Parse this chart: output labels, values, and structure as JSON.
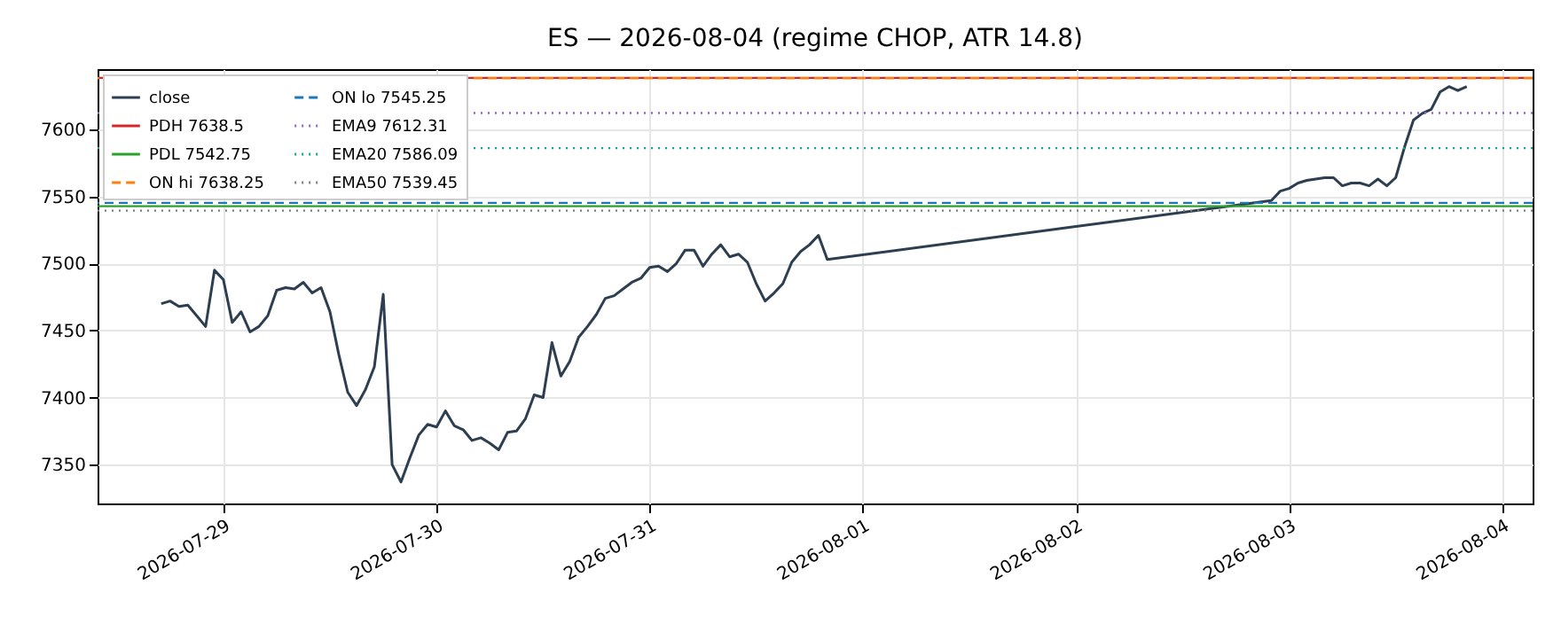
{
  "chart_data": {
    "type": "line",
    "title": "ES — 2026-08-04  (regime CHOP, ATR 14.8)",
    "series": [
      {
        "name": "close",
        "color": "#2c3e50",
        "line_style": "solid",
        "x": [
          "2026-07-28T17:00",
          "2026-07-28T18:00",
          "2026-07-28T19:00",
          "2026-07-28T20:00",
          "2026-07-28T21:00",
          "2026-07-28T22:00",
          "2026-07-28T23:00",
          "2026-07-29T00:00",
          "2026-07-29T01:00",
          "2026-07-29T02:00",
          "2026-07-29T03:00",
          "2026-07-29T04:00",
          "2026-07-29T05:00",
          "2026-07-29T06:00",
          "2026-07-29T07:00",
          "2026-07-29T08:00",
          "2026-07-29T09:00",
          "2026-07-29T10:00",
          "2026-07-29T11:00",
          "2026-07-29T12:00",
          "2026-07-29T13:00",
          "2026-07-29T14:00",
          "2026-07-29T15:00",
          "2026-07-29T16:00",
          "2026-07-29T17:00",
          "2026-07-29T18:00",
          "2026-07-29T19:00",
          "2026-07-29T20:00",
          "2026-07-29T21:00",
          "2026-07-29T22:00",
          "2026-07-29T23:00",
          "2026-07-30T00:00",
          "2026-07-30T01:00",
          "2026-07-30T02:00",
          "2026-07-30T03:00",
          "2026-07-30T04:00",
          "2026-07-30T05:00",
          "2026-07-30T06:00",
          "2026-07-30T07:00",
          "2026-07-30T08:00",
          "2026-07-30T09:00",
          "2026-07-30T10:00",
          "2026-07-30T11:00",
          "2026-07-30T12:00",
          "2026-07-30T13:00",
          "2026-07-30T14:00",
          "2026-07-30T15:00",
          "2026-07-30T16:00",
          "2026-07-30T17:00",
          "2026-07-30T18:00",
          "2026-07-30T19:00",
          "2026-07-30T20:00",
          "2026-07-30T21:00",
          "2026-07-30T22:00",
          "2026-07-30T23:00",
          "2026-07-31T00:00",
          "2026-07-31T01:00",
          "2026-07-31T02:00",
          "2026-07-31T03:00",
          "2026-07-31T04:00",
          "2026-07-31T05:00",
          "2026-07-31T06:00",
          "2026-07-31T07:00",
          "2026-07-31T08:00",
          "2026-07-31T09:00",
          "2026-07-31T10:00",
          "2026-07-31T11:00",
          "2026-07-31T12:00",
          "2026-07-31T13:00",
          "2026-07-31T14:00",
          "2026-07-31T15:00",
          "2026-07-31T16:00",
          "2026-07-31T17:00",
          "2026-07-31T18:00",
          "2026-07-31T19:00",
          "2026-07-31T20:00",
          "2026-08-02T22:00",
          "2026-08-02T23:00",
          "2026-08-03T00:00",
          "2026-08-03T01:00",
          "2026-08-03T02:00",
          "2026-08-03T03:00",
          "2026-08-03T04:00",
          "2026-08-03T05:00",
          "2026-08-03T06:00",
          "2026-08-03T07:00",
          "2026-08-03T08:00",
          "2026-08-03T09:00",
          "2026-08-03T10:00",
          "2026-08-03T11:00",
          "2026-08-03T12:00",
          "2026-08-03T13:00",
          "2026-08-03T14:00",
          "2026-08-03T15:00",
          "2026-08-03T16:00",
          "2026-08-03T17:00",
          "2026-08-03T18:00",
          "2026-08-03T19:00",
          "2026-08-03T20:00"
        ],
        "values": [
          7470,
          7472,
          7468,
          7469,
          7461,
          7453,
          7495,
          7488,
          7456,
          7464,
          7449,
          7453,
          7461,
          7480,
          7482,
          7481,
          7486,
          7478,
          7482,
          7464,
          7432,
          7404,
          7394,
          7406,
          7423,
          7477,
          7350,
          7337,
          7355,
          7372,
          7380,
          7378,
          7390,
          7379,
          7376,
          7368,
          7370,
          7366,
          7361,
          7374,
          7375,
          7384,
          7402,
          7400,
          7441,
          7416,
          7427,
          7445,
          7453,
          7462,
          7474,
          7476,
          7481,
          7486,
          7489,
          7497,
          7498,
          7494,
          7500,
          7510,
          7510,
          7498,
          7507,
          7514,
          7505,
          7507,
          7501,
          7485,
          7472,
          7478,
          7485,
          7501,
          7509,
          7514,
          7521,
          7503,
          7547,
          7554,
          7556,
          7560,
          7562,
          7563,
          7564,
          7564,
          7558,
          7560,
          7560,
          7558,
          7563,
          7558,
          7564,
          7587,
          7607,
          7612,
          7615,
          7628,
          7632,
          7629,
          7632
        ]
      }
    ],
    "ref_lines": [
      {
        "axis": "y",
        "value": 7638.5,
        "label": "PDH 7638.5",
        "color": "#d62728",
        "line_style": "solid"
      },
      {
        "axis": "y",
        "value": 7542.75,
        "label": "PDL 7542.75",
        "color": "#2ca02c",
        "line_style": "solid"
      },
      {
        "axis": "y",
        "value": 7638.25,
        "label": "ON hi 7638.25",
        "color": "#ff7f0e",
        "line_style": "dashed"
      },
      {
        "axis": "y",
        "value": 7545.25,
        "label": "ON lo 7545.25",
        "color": "#1f77b4",
        "line_style": "dashed"
      },
      {
        "axis": "y",
        "value": 7612.31,
        "label": "EMA9 7612.31",
        "color": "#9467bd",
        "line_style": "dotted"
      },
      {
        "axis": "y",
        "value": 7586.09,
        "label": "EMA20 7586.09",
        "color": "#17a589",
        "line_style": "dotted"
      },
      {
        "axis": "y",
        "value": 7539.45,
        "label": "EMA50 7539.45",
        "color": "#7f7f7f",
        "line_style": "dotted"
      }
    ],
    "xlim": [
      "2026-07-28T09:50",
      "2026-08-04T03:25"
    ],
    "xticks": [
      "2026-07-29",
      "2026-07-30",
      "2026-07-31",
      "2026-08-01",
      "2026-08-02",
      "2026-08-03",
      "2026-08-04"
    ],
    "ylim": [
      7321,
      7645
    ],
    "yticks": [
      7350,
      7400,
      7450,
      7500,
      7550,
      7600
    ],
    "grid": true,
    "legend": "top left",
    "marker": "none"
  }
}
